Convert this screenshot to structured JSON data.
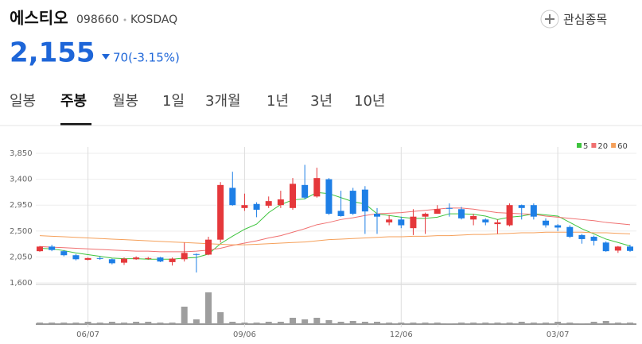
{
  "header": {
    "name": "에스티오",
    "code": "098660",
    "market": "KOSDAQ",
    "watch": "관심종목",
    "price": "2,155",
    "change": "70(-3.15%)"
  },
  "tabs": {
    "items": [
      "일봉",
      "주봉",
      "월봉",
      "1일",
      "3개월",
      "1년",
      "3년",
      "10년"
    ],
    "selected": 1
  },
  "chart_data": {
    "type": "candlestick",
    "categories": [
      null,
      null,
      null,
      null,
      "06/07",
      null,
      null,
      null,
      null,
      null,
      null,
      null,
      null,
      null,
      null,
      null,
      null,
      "09/06",
      null,
      null,
      null,
      null,
      null,
      null,
      null,
      null,
      null,
      null,
      null,
      null,
      "12/06",
      null,
      null,
      null,
      null,
      null,
      null,
      null,
      null,
      null,
      null,
      null,
      null,
      "03/07",
      null,
      null,
      null,
      null,
      null,
      null
    ],
    "open": [
      2150,
      2230,
      2150,
      2080,
      2000,
      2030,
      2010,
      1950,
      2010,
      2020,
      2040,
      1960,
      2010,
      2100,
      2090,
      2350,
      3250,
      2900,
      2970,
      2940,
      2950,
      2900,
      3300,
      3100,
      3400,
      2850,
      3200,
      3220,
      2800,
      2650,
      2700,
      2550,
      2750,
      2800,
      2900,
      2880,
      2700,
      2700,
      2620,
      2600,
      2950,
      2950,
      2680,
      2600,
      2570,
      2430,
      2400,
      2300,
      2160,
      2230
    ],
    "high": [
      2240,
      2260,
      2170,
      2100,
      2040,
      2060,
      2020,
      2040,
      2060,
      2050,
      2050,
      2040,
      2300,
      2110,
      2400,
      3350,
      3530,
      3150,
      3000,
      3100,
      3200,
      3420,
      3650,
      3600,
      3420,
      3200,
      3250,
      3280,
      2900,
      2780,
      2750,
      2880,
      2820,
      2950,
      2980,
      2920,
      2800,
      2720,
      2700,
      2980,
      2960,
      2980,
      2720,
      2620,
      2600,
      2450,
      2420,
      2320,
      2240,
      2260
    ],
    "low": [
      2140,
      2150,
      2060,
      1990,
      1990,
      2000,
      1920,
      1910,
      2000,
      2000,
      1960,
      1900,
      1970,
      1780,
      2080,
      2300,
      2940,
      2850,
      2740,
      2900,
      2900,
      2870,
      3050,
      3080,
      2780,
      2750,
      2780,
      2450,
      2450,
      2600,
      2550,
      2430,
      2450,
      2800,
      2750,
      2700,
      2600,
      2600,
      2450,
      2580,
      2700,
      2700,
      2560,
      2500,
      2380,
      2280,
      2250,
      2140,
      2120,
      2140
    ],
    "close": [
      2230,
      2170,
      2080,
      2010,
      2030,
      2020,
      1940,
      2020,
      2040,
      2030,
      1970,
      2020,
      2120,
      2090,
      2350,
      3300,
      2950,
      2950,
      2870,
      3020,
      3050,
      3320,
      3080,
      3420,
      2800,
      2760,
      2800,
      2840,
      2750,
      2700,
      2600,
      2750,
      2800,
      2880,
      2890,
      2720,
      2760,
      2650,
      2650,
      2950,
      2900,
      2750,
      2600,
      2560,
      2400,
      2360,
      2330,
      2150,
      2230,
      2155
    ],
    "volume": [
      2,
      2,
      2,
      2,
      3,
      2,
      3,
      2,
      3,
      3,
      2,
      2,
      22,
      6,
      40,
      15,
      3,
      2,
      2,
      3,
      3,
      8,
      6,
      8,
      5,
      3,
      4,
      3,
      3,
      2,
      2,
      2,
      2,
      2,
      1,
      2,
      2,
      2,
      2,
      2,
      3,
      2,
      2,
      3,
      2,
      1,
      3,
      4,
      2,
      2
    ],
    "up_color": "#e5383b",
    "down_color": "#1e7fe6",
    "volume_color": "#9e9e9e",
    "series": [
      {
        "name": "5",
        "color": "#3ec43e",
        "values": [
          2200,
          2190,
          2160,
          2120,
          2090,
          2060,
          2030,
          2020,
          2020,
          2010,
          2010,
          2010,
          2030,
          2040,
          2100,
          2280,
          2410,
          2530,
          2620,
          2820,
          2960,
          3040,
          3060,
          3170,
          3150,
          3080,
          3010,
          2970,
          2800,
          2770,
          2740,
          2720,
          2720,
          2740,
          2800,
          2800,
          2790,
          2760,
          2700,
          2740,
          2760,
          2800,
          2780,
          2760,
          2650,
          2540,
          2450,
          2360,
          2300,
          2240
        ]
      },
      {
        "name": "20",
        "color": "#f07070",
        "values": [
          2230,
          2220,
          2210,
          2200,
          2190,
          2180,
          2170,
          2160,
          2150,
          2150,
          2140,
          2140,
          2140,
          2150,
          2170,
          2200,
          2250,
          2290,
          2330,
          2380,
          2420,
          2480,
          2540,
          2610,
          2650,
          2700,
          2730,
          2770,
          2800,
          2810,
          2820,
          2840,
          2860,
          2880,
          2900,
          2900,
          2880,
          2850,
          2820,
          2810,
          2800,
          2790,
          2760,
          2740,
          2720,
          2700,
          2680,
          2650,
          2630,
          2610
        ]
      },
      {
        "name": "60",
        "color": "#f5a05a",
        "values": [
          2420,
          2410,
          2400,
          2390,
          2380,
          2370,
          2360,
          2350,
          2340,
          2330,
          2320,
          2310,
          2300,
          2290,
          2280,
          2270,
          2260,
          2260,
          2270,
          2280,
          2290,
          2300,
          2310,
          2330,
          2350,
          2360,
          2370,
          2380,
          2390,
          2400,
          2400,
          2410,
          2410,
          2420,
          2420,
          2430,
          2440,
          2440,
          2450,
          2460,
          2470,
          2470,
          2480,
          2480,
          2480,
          2480,
          2470,
          2470,
          2460,
          2450
        ]
      }
    ],
    "ylim": [
      1600,
      3850
    ],
    "yticks": [
      {
        "value": 1600,
        "label": "1,600"
      },
      {
        "value": 2050,
        "label": "2,050"
      },
      {
        "value": 2500,
        "label": "2,500"
      },
      {
        "value": 2950,
        "label": "2,950"
      },
      {
        "value": 3400,
        "label": "3,400"
      },
      {
        "value": 3850,
        "label": "3,850"
      }
    ],
    "grid": true
  }
}
